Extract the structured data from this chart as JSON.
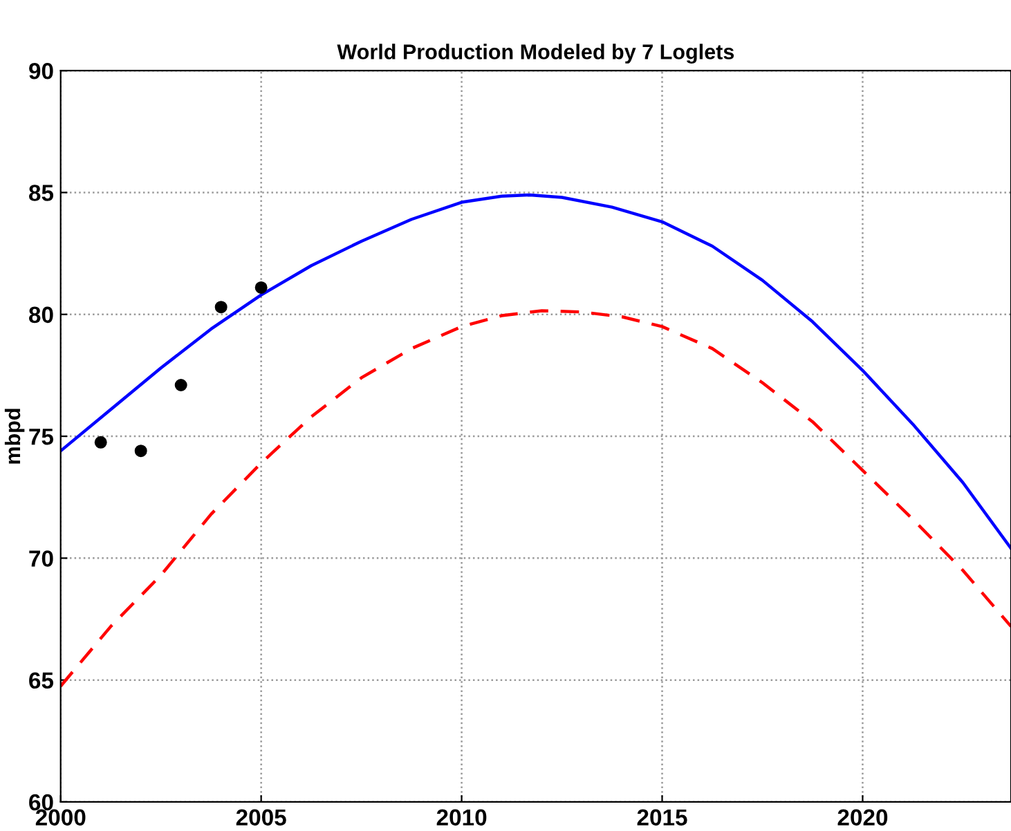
{
  "chart_data": {
    "type": "line",
    "title": "World Production Modeled by 7 Loglets",
    "ylabel": "mbpd",
    "xlim": [
      2000,
      2023.7
    ],
    "xticks": [
      2000,
      2005,
      2010,
      2015,
      2020
    ],
    "ylim": [
      60,
      90
    ],
    "yticks": [
      60,
      65,
      70,
      75,
      80,
      85,
      90
    ],
    "grid": true,
    "series": [
      {
        "color": "#0000ff",
        "line_style": "solid",
        "x": [
          2000,
          2001.25,
          2002.5,
          2003.75,
          2005,
          2006.25,
          2007.5,
          2008.75,
          2010,
          2011,
          2011.7,
          2012.5,
          2013.75,
          2015,
          2016.25,
          2017.5,
          2018.75,
          2020,
          2021.25,
          2022.5,
          2023.7
        ],
        "values": [
          74.4,
          76.1,
          77.8,
          79.4,
          80.8,
          82.0,
          83.0,
          83.9,
          84.6,
          84.85,
          84.9,
          84.8,
          84.4,
          83.8,
          82.8,
          81.4,
          79.7,
          77.7,
          75.5,
          73.1,
          70.4
        ]
      },
      {
        "color": "#ff0000",
        "line_style": "dashed",
        "x": [
          2000,
          2001.25,
          2002.5,
          2003.75,
          2005,
          2006.25,
          2007.5,
          2008.75,
          2010,
          2011,
          2012,
          2013,
          2014,
          2015,
          2016.25,
          2017.5,
          2018.75,
          2020,
          2021.25,
          2022.5,
          2023.7
        ],
        "values": [
          64.75,
          67.2,
          69.3,
          71.8,
          73.9,
          75.8,
          77.4,
          78.6,
          79.5,
          79.95,
          80.15,
          80.1,
          79.9,
          79.5,
          78.6,
          77.2,
          75.6,
          73.6,
          71.6,
          69.5,
          67.2
        ]
      },
      {
        "type": "scatter",
        "color": "#000000",
        "marker": "circle",
        "x": [
          2001,
          2002,
          2003,
          2004,
          2005
        ],
        "values": [
          74.75,
          74.4,
          77.1,
          80.3,
          81.1
        ]
      }
    ]
  }
}
